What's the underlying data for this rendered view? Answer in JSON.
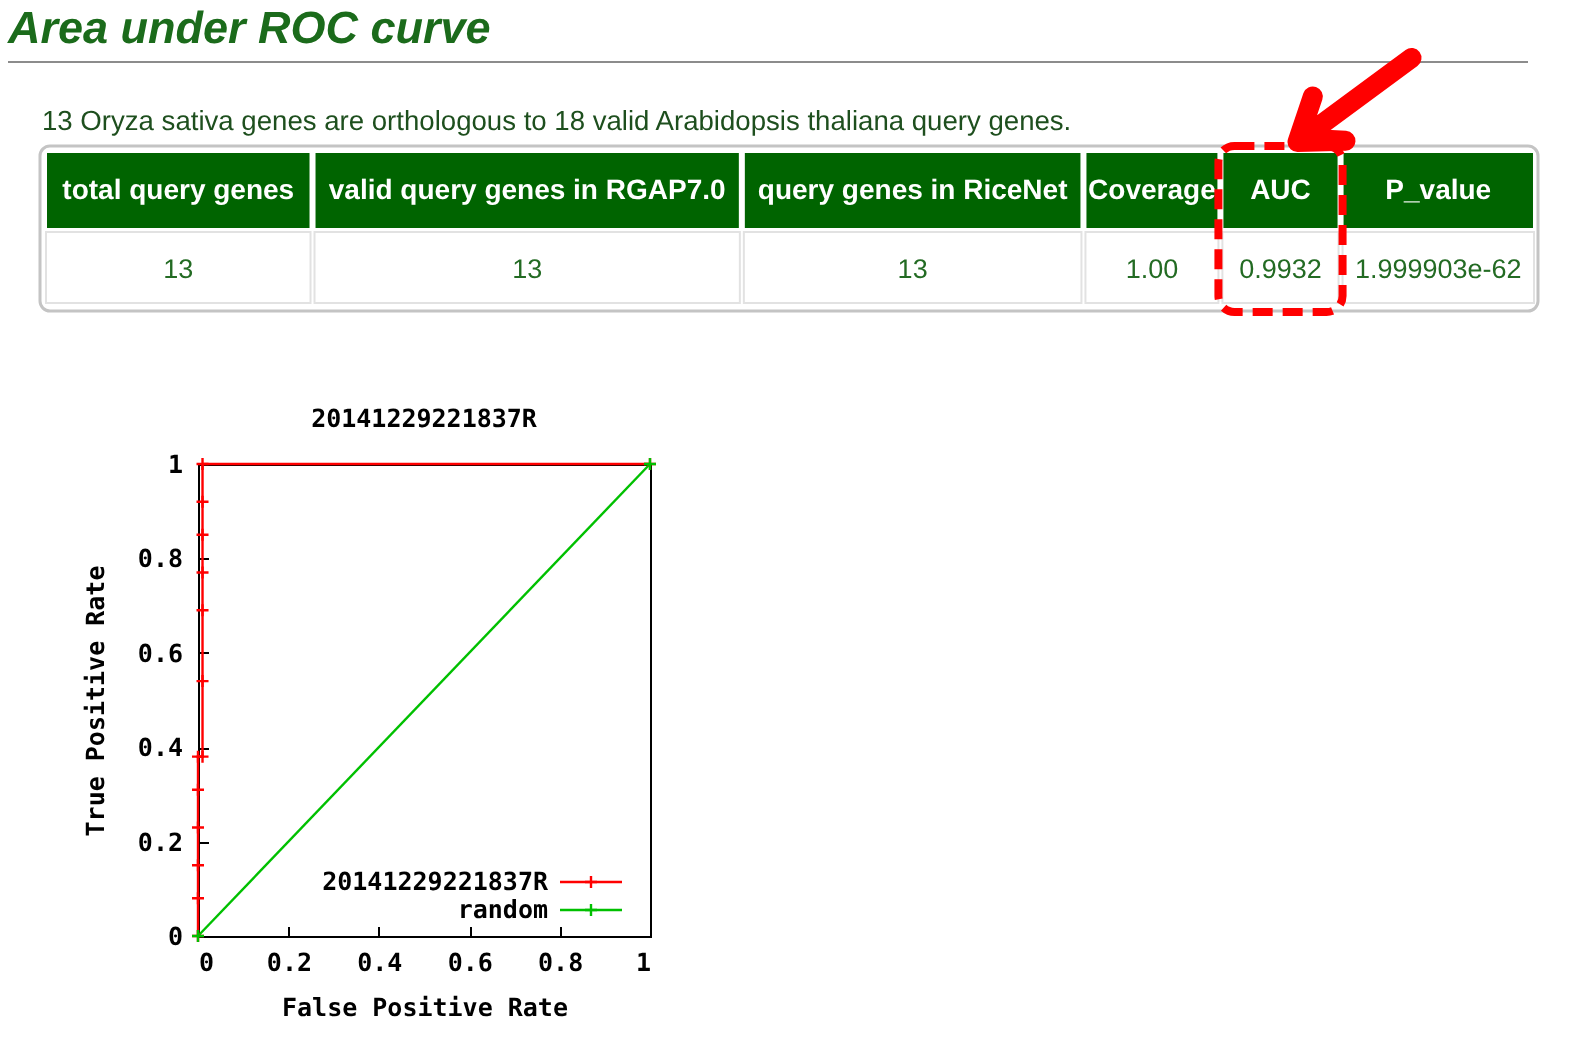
{
  "chart_data": [
    {
      "type": "other",
      "title": "Area under ROC curve",
      "subtitle": "13 Oryza sativa genes are orthologous to 18 valid Arabidopsis thaliana query genes.",
      "annotations": [
        "total query genes",
        "valid query genes in RGAP7.0",
        "query genes in RiceNet",
        "Coverage",
        "AUC",
        "P_value",
        "13",
        "13",
        "13",
        "1.00",
        "0.9932",
        "1.999903e-62"
      ]
    },
    {
      "type": "line",
      "title": "20141229221837R",
      "xlabel": "False Positive Rate",
      "ylabel": "True Positive Rate",
      "series": [
        {
          "name": "20141229221837R",
          "color": "#ff0000",
          "x": [
            0,
            0,
            0,
            0,
            0,
            0,
            0.01,
            0.01,
            0.01,
            0.01,
            0.01,
            0.01,
            0.01,
            1
          ],
          "values": [
            0,
            0.08,
            0.15,
            0.23,
            0.31,
            0.38,
            0.38,
            0.54,
            0.69,
            0.77,
            0.85,
            0.92,
            1,
            1
          ]
        },
        {
          "name": "random",
          "color": "#00c000",
          "x": [
            0,
            1
          ],
          "values": [
            0,
            1
          ]
        }
      ],
      "xlim": [
        0,
        1
      ],
      "ylim": [
        0,
        1
      ],
      "xticks": [
        0,
        0.2,
        0.4,
        0.6,
        0.8,
        1
      ],
      "yticks": [
        0,
        0.2,
        0.4,
        0.6,
        0.8,
        1
      ],
      "legend": "bottom right",
      "marker": "cross"
    }
  ]
}
